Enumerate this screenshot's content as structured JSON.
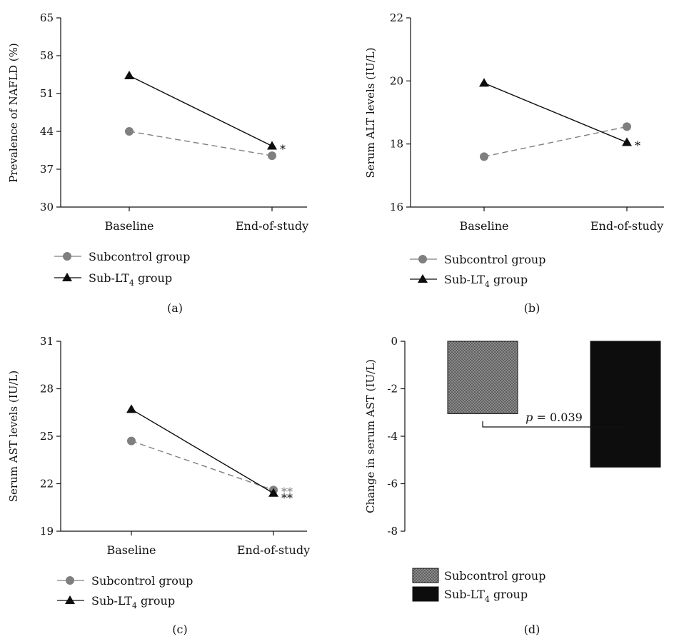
{
  "colors": {
    "subcontrol": "#7f7f7f",
    "sublt4": "#0d0d0d",
    "axis": "#111111",
    "bar_sub_fill": "#808080",
    "bar_lt4_fill": "#0d0d0d"
  },
  "legend_entries": [
    {
      "text": "Subcontrol group",
      "sub": "",
      "tail": ""
    },
    {
      "text": "Sub-LT",
      "sub": "4",
      "tail": " group"
    }
  ],
  "chart_data": [
    {
      "type": "line",
      "caption": "(a)",
      "ylabel": "Prevalence of NAFLD (%)",
      "ylim": [
        30,
        65
      ],
      "yticks": [
        30,
        37,
        44,
        51,
        58,
        65
      ],
      "categories": [
        "Baseline",
        "End-of-study"
      ],
      "series": [
        {
          "name": "Subcontrol group",
          "values": [
            44.0,
            39.5
          ],
          "marker": "circle",
          "dashed": true
        },
        {
          "name": "Sub-LT4 group",
          "values": [
            54.3,
            41.3
          ],
          "marker": "triangle",
          "dashed": false
        }
      ],
      "annotations": [
        {
          "text": "*",
          "series": 1,
          "index": 1,
          "color": "sublt4"
        }
      ]
    },
    {
      "type": "line",
      "caption": "(b)",
      "ylabel": "Serum ALT levels (IU/L)",
      "ylim": [
        16,
        22
      ],
      "yticks": [
        16,
        18,
        20,
        22
      ],
      "categories": [
        "Baseline",
        "End-of-study"
      ],
      "series": [
        {
          "name": "Subcontrol group",
          "values": [
            17.6,
            18.55
          ],
          "marker": "circle",
          "dashed": true
        },
        {
          "name": "Sub-LT4 group",
          "values": [
            19.93,
            18.05
          ],
          "marker": "triangle",
          "dashed": false
        }
      ],
      "annotations": [
        {
          "text": "*",
          "series": 1,
          "index": 1,
          "color": "sublt4"
        }
      ]
    },
    {
      "type": "line",
      "caption": "(c)",
      "ylabel": "Serum AST levels (IU/L)",
      "ylim": [
        19,
        31
      ],
      "yticks": [
        19,
        22,
        25,
        28,
        31
      ],
      "categories": [
        "Baseline",
        "End-of-study"
      ],
      "series": [
        {
          "name": "Subcontrol group",
          "values": [
            24.7,
            21.6
          ],
          "marker": "circle",
          "dashed": true
        },
        {
          "name": "Sub-LT4 group",
          "values": [
            26.7,
            21.4
          ],
          "marker": "triangle",
          "dashed": false
        }
      ],
      "annotations": [
        {
          "text": "**",
          "series": 0,
          "index": 1,
          "color": "subcontrol"
        },
        {
          "text": "**",
          "series": 1,
          "index": 1,
          "color": "sublt4"
        }
      ]
    },
    {
      "type": "bar",
      "caption": "(d)",
      "ylabel": "Change in serum AST (IU/L)",
      "ylim": [
        -8,
        0
      ],
      "yticks": [
        0,
        -2,
        -4,
        -6,
        -8
      ],
      "categories": [
        "Subcontrol group",
        "Sub-LT4 group"
      ],
      "values": [
        -3.05,
        -5.3
      ],
      "annotation": {
        "italic": "p",
        "rest": " = 0.039"
      }
    }
  ]
}
